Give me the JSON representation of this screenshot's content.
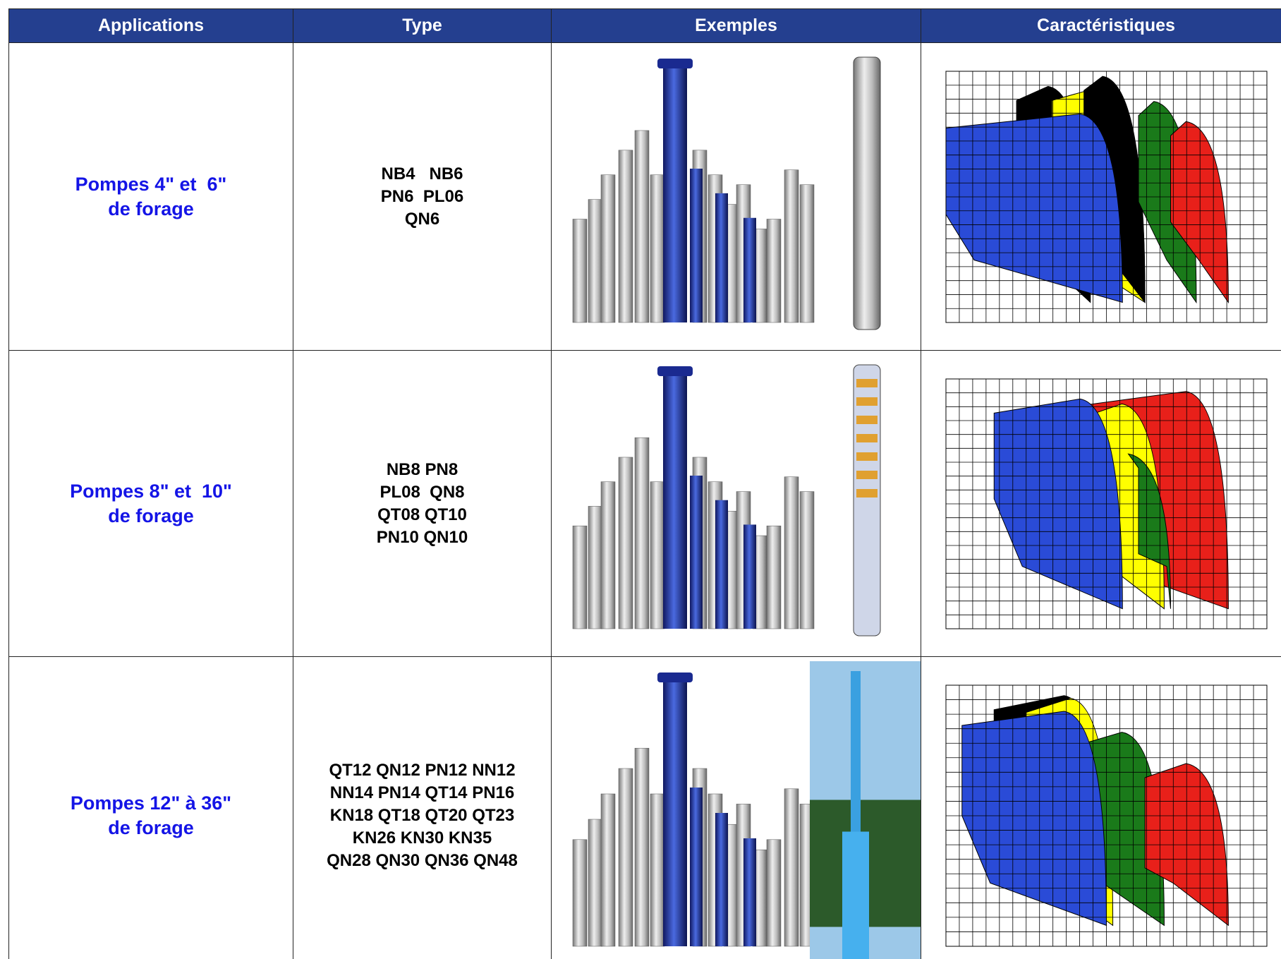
{
  "table": {
    "header": [
      "Applications",
      "Type",
      "Exemples",
      "Caractéristiques"
    ],
    "rows": [
      {
        "application": [
          "Pompes 4\" et  6\"",
          "de forage"
        ],
        "type": [
          "NB4   NB6",
          "PN6  PL06",
          "QN6"
        ]
      },
      {
        "application": [
          "Pompes 8\" et  10\"",
          "de forage"
        ],
        "type": [
          "NB8 PN8",
          "PL08  QN8",
          "QT08 QT10",
          "PN10 QN10"
        ]
      },
      {
        "application": [
          "Pompes 12\" à 36\"",
          "de forage"
        ],
        "type": [
          "QT12 QN12 PN12 NN12",
          "NN14 PN14 QT14 PN16",
          "KN18 QT18 QT20 QT23",
          "KN26 KN30 KN35",
          "QN28 QN30 QN36 QN48"
        ]
      }
    ]
  }
}
